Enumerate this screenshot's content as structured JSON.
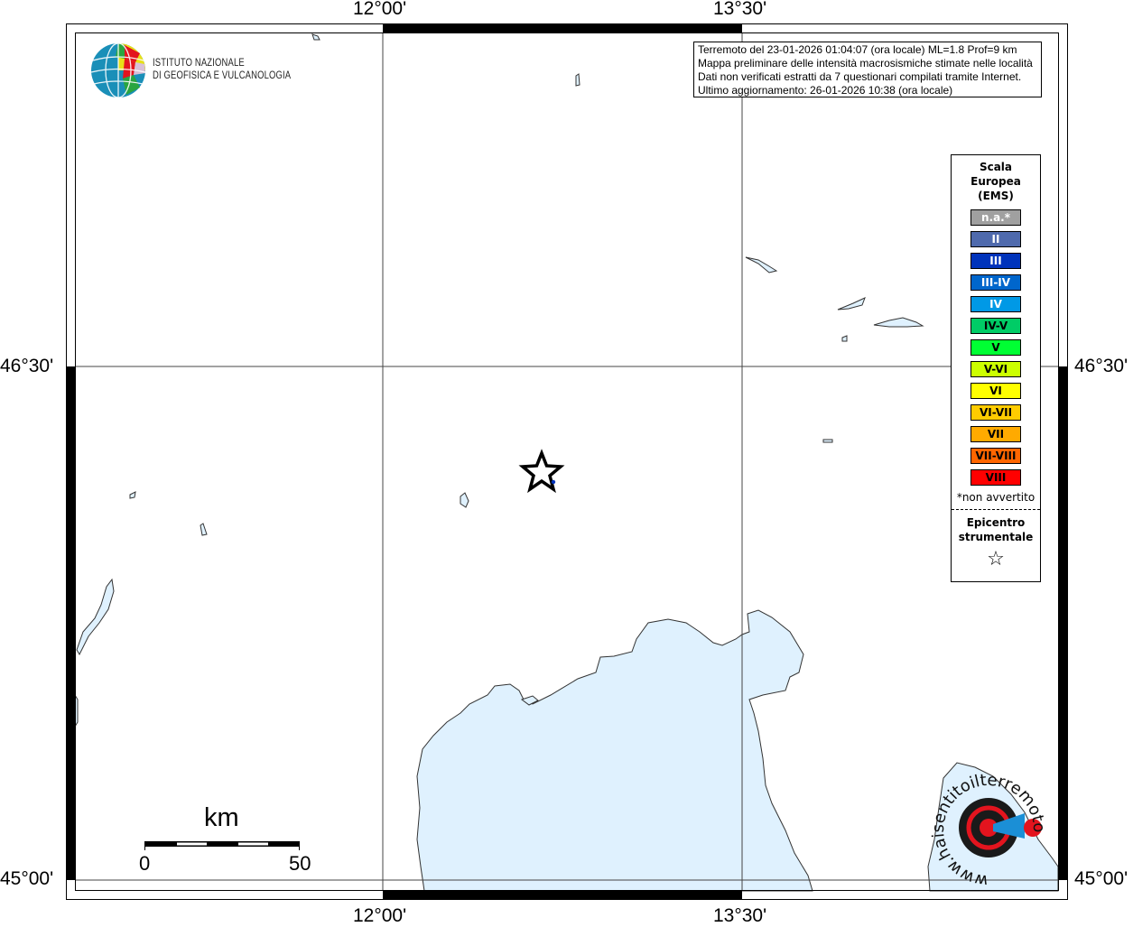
{
  "map": {
    "lon_labels": [
      "12°00'",
      "13°30'"
    ],
    "lat_labels": [
      "46°30'",
      "45°00'"
    ],
    "land_color": "#ffffff",
    "water_color": "#dff1fe",
    "epicenter_marker": "star-icon"
  },
  "info_box": {
    "lines": [
      "Terremoto del 23-01-2026 01:04:07 (ora locale) ML=1.8 Prof=9 km",
      "Mappa preliminare delle intensità macrosismiche stimate nelle località",
      "Dati non verificati estratti da 7 questionari compilati tramite Internet.",
      "Ultimo aggiornamento: 26-01-2026 10:38 (ora locale)"
    ]
  },
  "legend": {
    "title_lines": [
      "Scala",
      "Europea",
      "(EMS)"
    ],
    "classes": [
      {
        "label": "n.a.*",
        "color": "#a0a0a0",
        "text_color": "#ffffff"
      },
      {
        "label": "II",
        "color": "#4f6aad",
        "text_color": "#ffffff"
      },
      {
        "label": "III",
        "color": "#0033bb",
        "text_color": "#ffffff"
      },
      {
        "label": "III-IV",
        "color": "#0066cc",
        "text_color": "#ffffff"
      },
      {
        "label": "IV",
        "color": "#0099e6",
        "text_color": "#ffffff"
      },
      {
        "label": "IV-V",
        "color": "#00cc66",
        "text_color": "#000000"
      },
      {
        "label": "V",
        "color": "#00ff33",
        "text_color": "#000000"
      },
      {
        "label": "V-VI",
        "color": "#ccff00",
        "text_color": "#000000"
      },
      {
        "label": "VI",
        "color": "#ffff00",
        "text_color": "#000000"
      },
      {
        "label": "VI-VII",
        "color": "#ffcc00",
        "text_color": "#000000"
      },
      {
        "label": "VII",
        "color": "#ffaa00",
        "text_color": "#000000"
      },
      {
        "label": "VII-VIII",
        "color": "#ff6600",
        "text_color": "#000000"
      },
      {
        "label": "VIII",
        "color": "#ff0000",
        "text_color": "#000000"
      }
    ],
    "note": "*non avvertito",
    "epicenter_lines": [
      "Epicentro",
      "strumentale"
    ],
    "epicenter_symbol": "☆"
  },
  "logo": {
    "line1": "ISTITUTO NAZIONALE",
    "line2": "DI GEOFISICA E VULCANOLOGIA"
  },
  "hsit_logo": {
    "text": "www.haisentitoilterremoto.it"
  },
  "scale_bar": {
    "unit": "km",
    "min": "0",
    "max": "50"
  }
}
